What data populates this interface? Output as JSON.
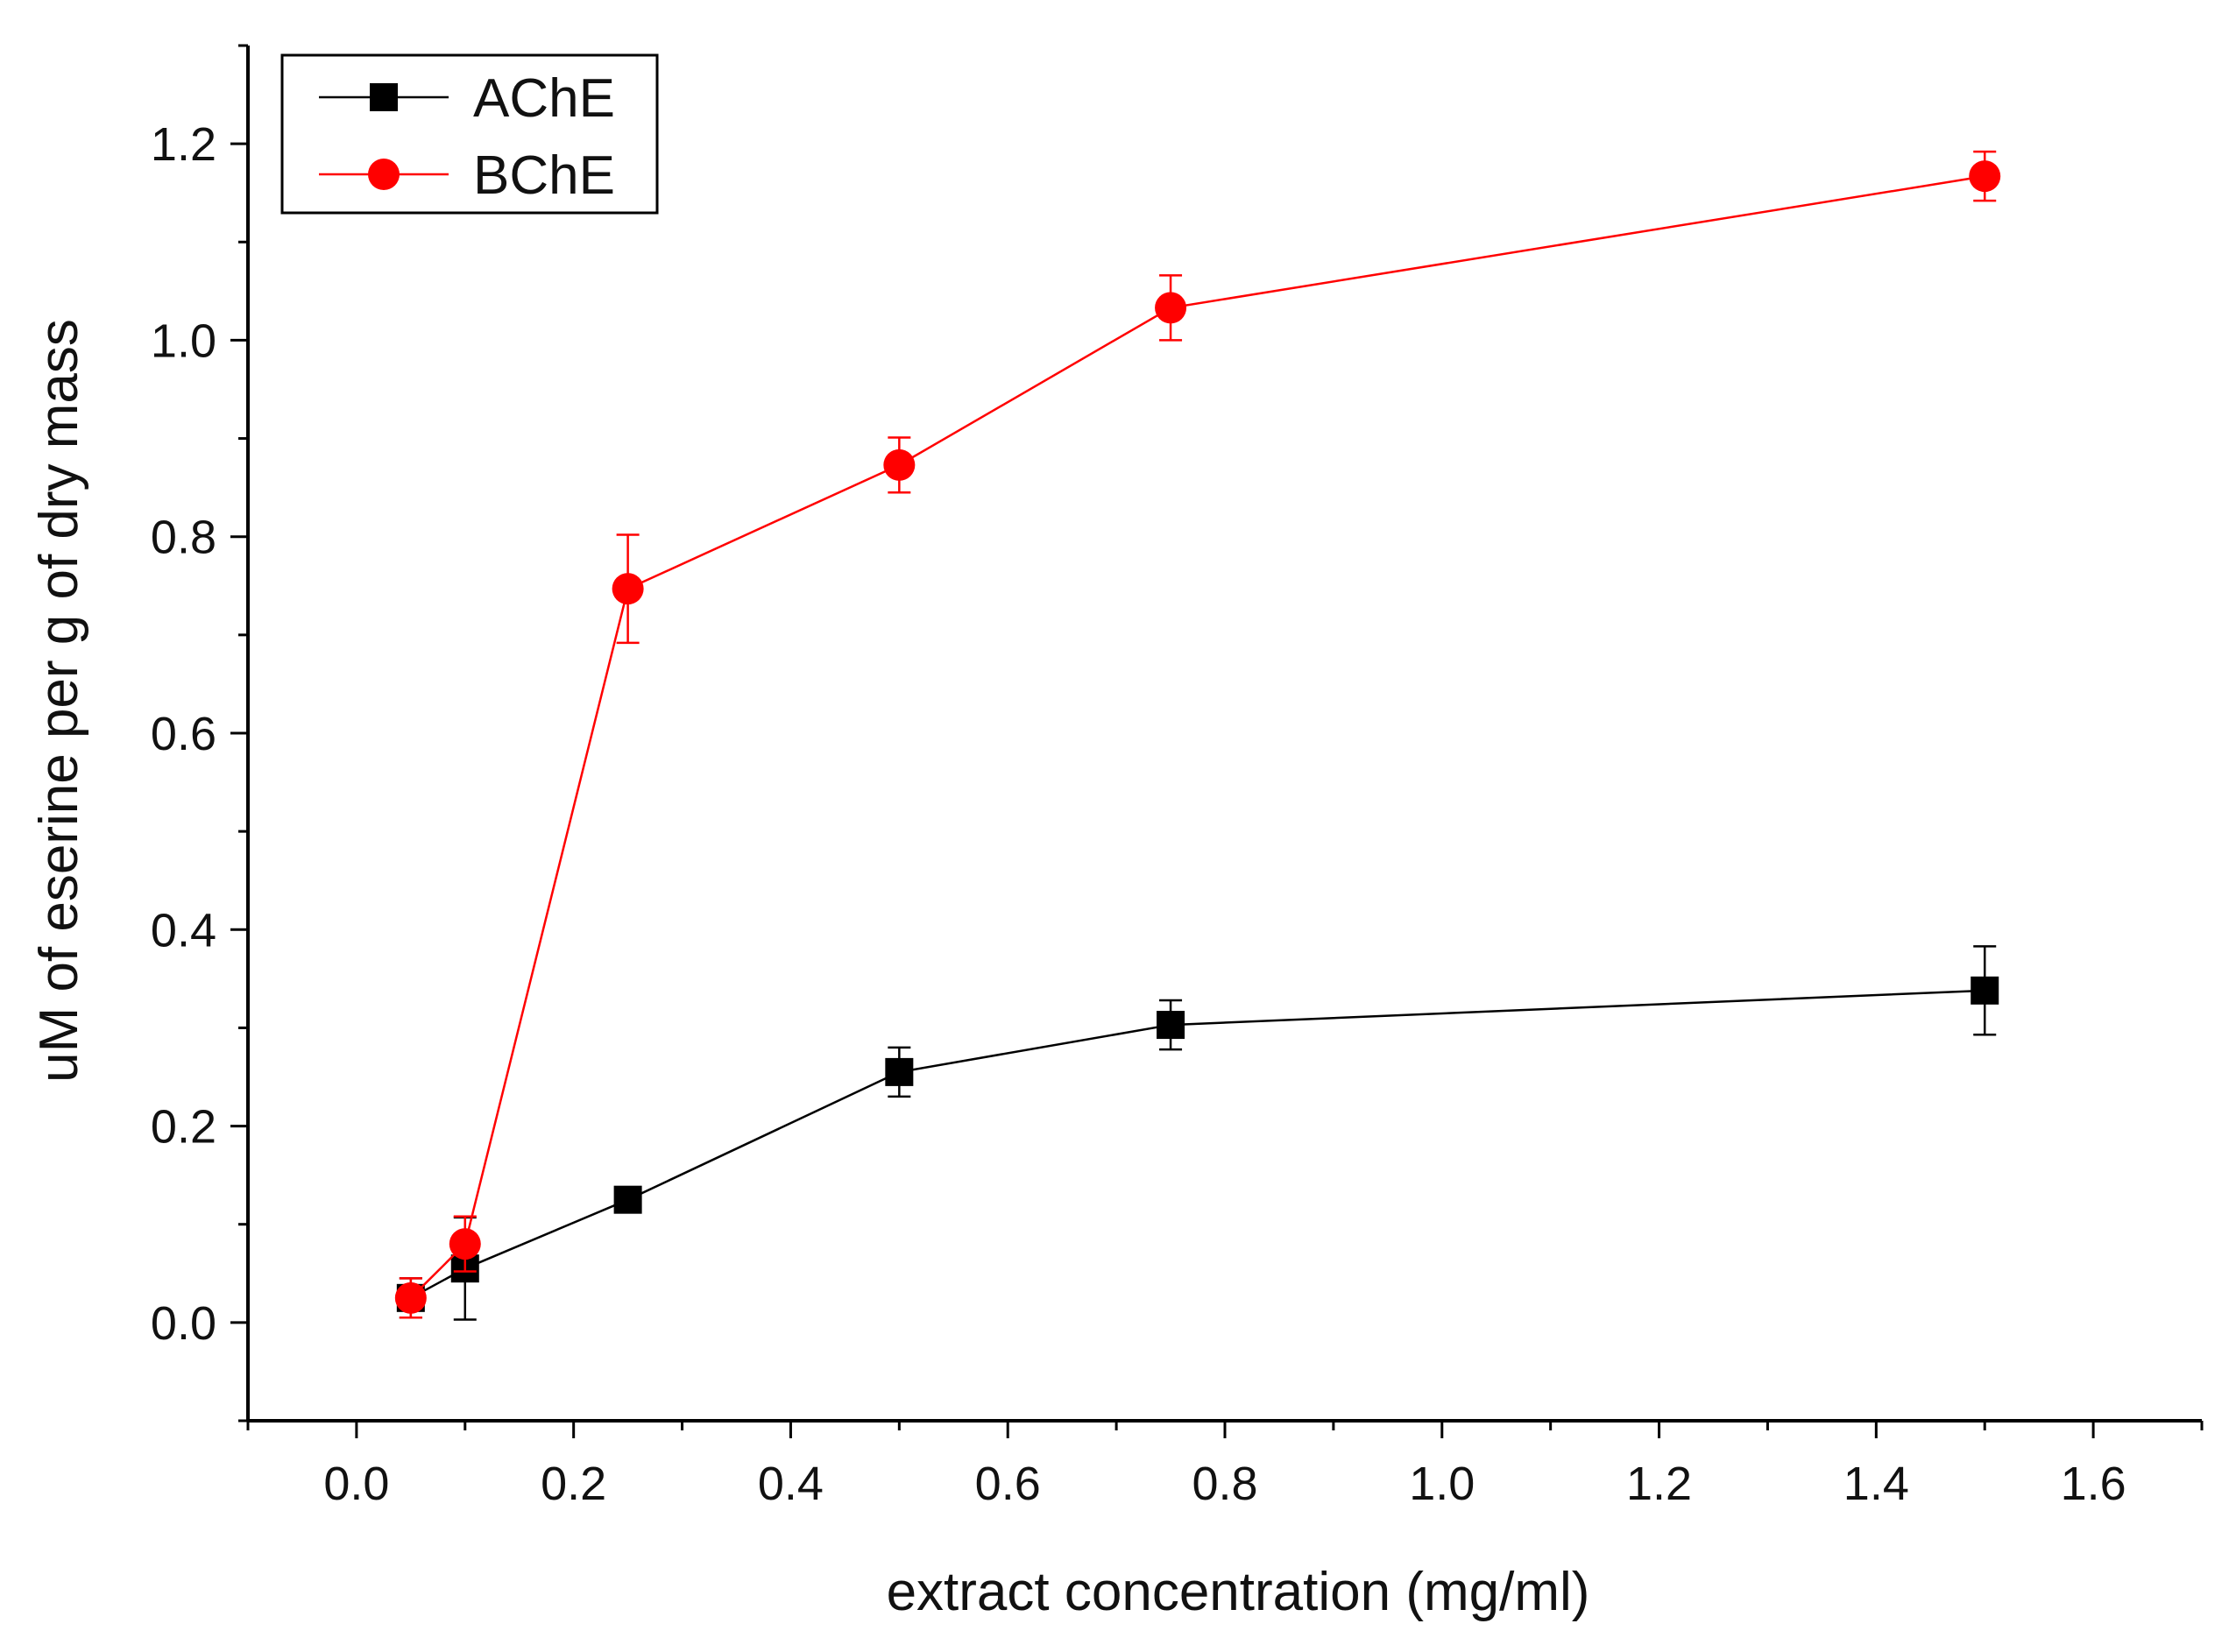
{
  "chart_data": {
    "type": "line",
    "title": "",
    "xlabel": "extract concentration (mg/ml)",
    "ylabel": "uM of eserine per g of dry mass",
    "xlim": [
      -0.1,
      1.7
    ],
    "ylim": [
      -0.1,
      1.3
    ],
    "x_ticks": [
      0.0,
      0.2,
      0.4,
      0.6,
      0.8,
      1.0,
      1.2,
      1.4,
      1.6
    ],
    "x_tick_labels": [
      "0.0",
      "0.2",
      "0.4",
      "0.6",
      "0.8",
      "1.0",
      "1.2",
      "1.4",
      "1.6"
    ],
    "y_ticks": [
      0.0,
      0.2,
      0.4,
      0.6,
      0.8,
      1.0,
      1.2
    ],
    "y_tick_labels": [
      "0.0",
      "0.2",
      "0.4",
      "0.6",
      "0.8",
      "1.0",
      "1.2"
    ],
    "grid": false,
    "legend_position": "top-left",
    "series": [
      {
        "name": "AChE",
        "color": "#000000",
        "marker": "square",
        "x": [
          0.05,
          0.1,
          0.25,
          0.5,
          0.75,
          1.5
        ],
        "y": [
          0.025,
          0.055,
          0.125,
          0.255,
          0.303,
          0.338
        ],
        "error": [
          0.02,
          0.052,
          0.008,
          0.025,
          0.025,
          0.045
        ]
      },
      {
        "name": "BChE",
        "color": "#ff0000",
        "marker": "circle",
        "x": [
          0.05,
          0.1,
          0.25,
          0.5,
          0.75,
          1.5
        ],
        "y": [
          0.025,
          0.08,
          0.747,
          0.873,
          1.033,
          1.167
        ],
        "error": [
          0.02,
          0.028,
          0.055,
          0.028,
          0.033,
          0.025
        ]
      }
    ]
  }
}
